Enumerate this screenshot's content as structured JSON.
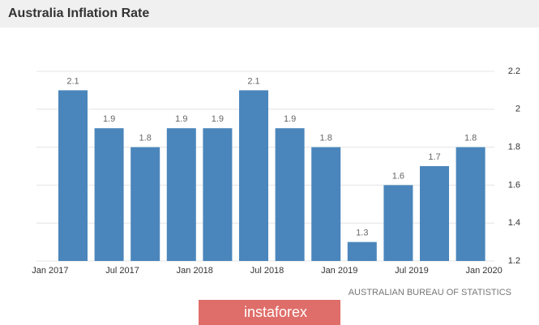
{
  "chart_data": {
    "type": "bar",
    "title": "Australia Inflation Rate",
    "categories": [
      null,
      null,
      null,
      null,
      null,
      null,
      null,
      null,
      null,
      null,
      null,
      null
    ],
    "values": [
      2.1,
      1.9,
      1.8,
      1.9,
      1.9,
      2.1,
      1.9,
      1.8,
      1.3,
      1.6,
      1.7,
      1.8
    ],
    "color": "#4a86bb",
    "xtick_labels": [
      "Jan 2017",
      "Jul 2017",
      "Jan 2018",
      "Jul 2018",
      "Jan 2019",
      "Jul 2019",
      "Jan 2020"
    ],
    "ylim": [
      1.2,
      2.2
    ],
    "yticks": [
      1.2,
      1.4,
      1.6,
      1.8,
      2,
      2.2
    ],
    "grid": true,
    "source": "AUSTRALIAN BUREAU OF STATISTICS",
    "watermark": "instaforex"
  }
}
